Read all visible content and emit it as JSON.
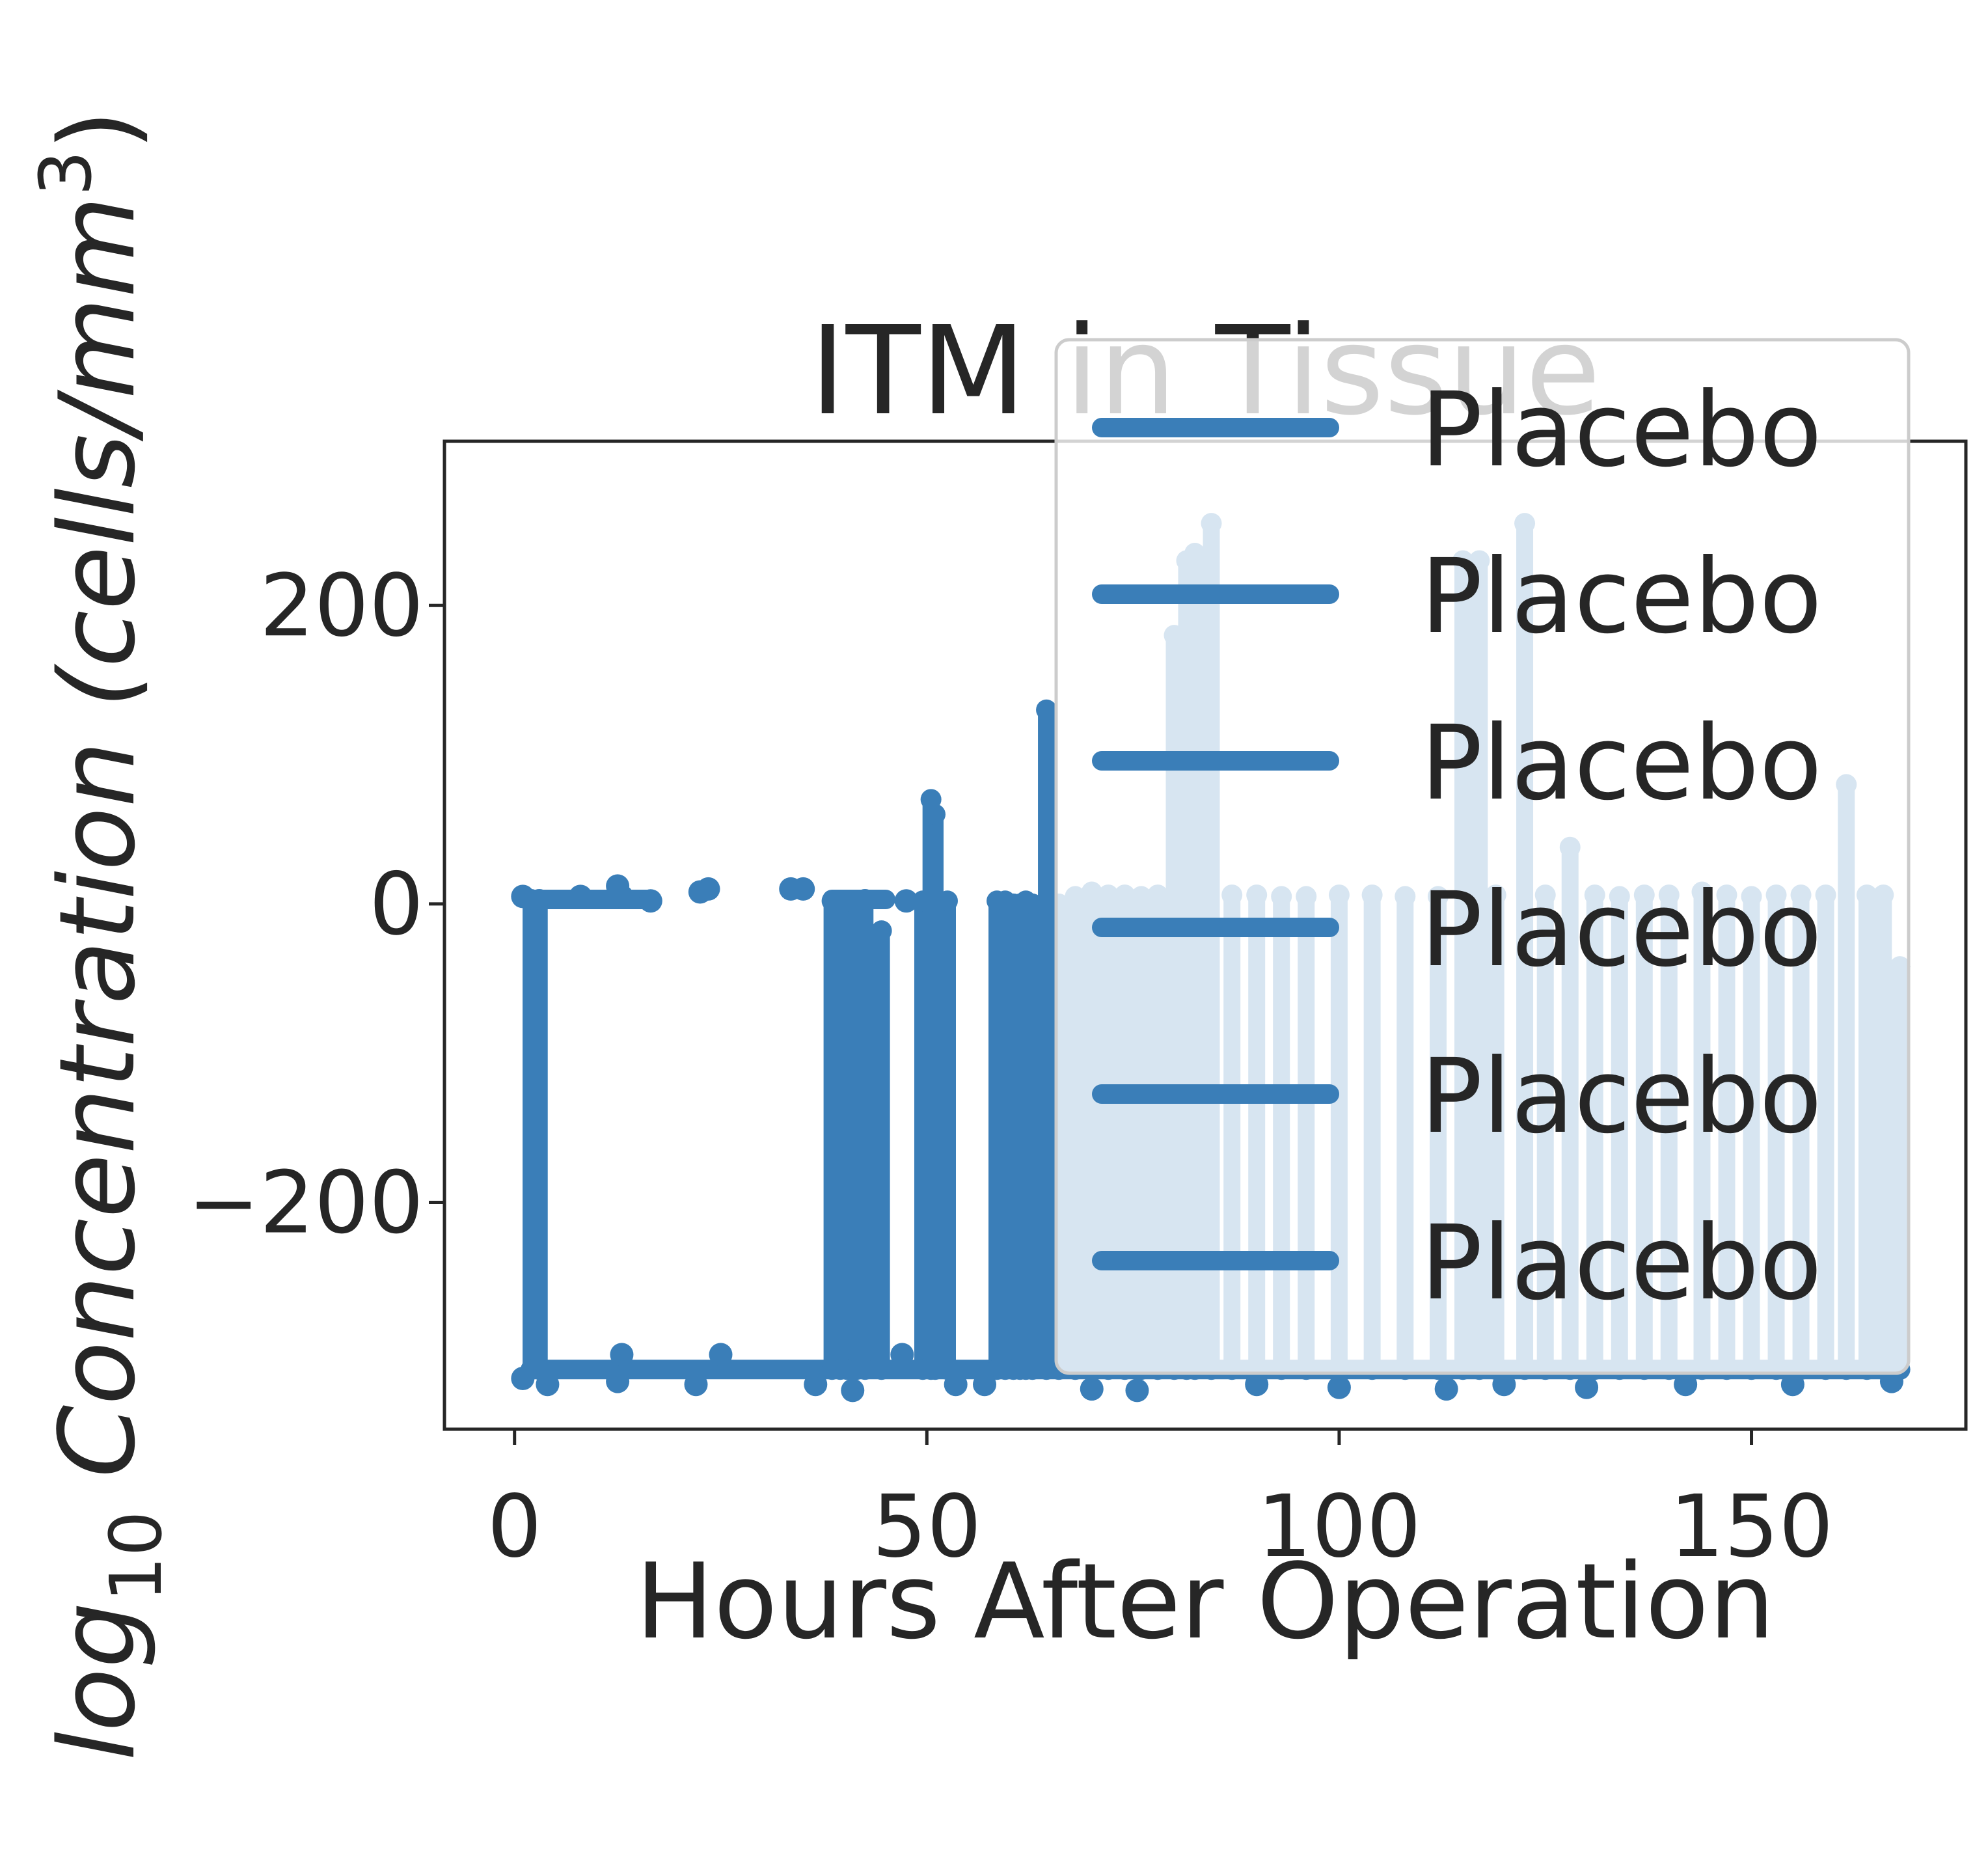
{
  "chart_data": {
    "type": "line",
    "title": "ITM  in Tissue",
    "xlabel": "Hours After Operation",
    "ylabel_prefix": "log",
    "ylabel_subscript": "10",
    "ylabel_main": " Concentration (cells/mm",
    "ylabel_superscript": "3",
    "ylabel_close": ")",
    "xlim": [
      -8.5,
      176
    ],
    "ylim": [
      -352,
      310
    ],
    "xticks": [
      0,
      50,
      100,
      150
    ],
    "xtick_labels": [
      "0",
      "50",
      "100",
      "150"
    ],
    "yticks": [
      -200,
      0,
      200
    ],
    "ytick_labels": [
      "−200",
      "0",
      "200"
    ],
    "grid": false,
    "legend_placement": "upper right",
    "legend_entries": [
      "Placebo",
      "Placebo",
      "Placebo",
      "Placebo",
      "Placebo",
      "Placebo"
    ],
    "colors": {
      "series": "#3a7eb8",
      "axis": "#262626",
      "legend_frame": "#cccccc"
    },
    "series": [
      {
        "baseline": -312,
        "upper_level": 3,
        "spikes": [
          {
            "x": 2,
            "top": 3
          },
          {
            "x": 3,
            "top": 3
          },
          {
            "x": 38.5,
            "top": 2
          },
          {
            "x": 39.5,
            "top": 2
          },
          {
            "x": 40.3,
            "top": 2
          },
          {
            "x": 41.5,
            "top": 2
          },
          {
            "x": 42.5,
            "top": 3
          },
          {
            "x": 44.5,
            "top": -18
          },
          {
            "x": 49.5,
            "top": 2
          },
          {
            "x": 50.5,
            "top": 70
          },
          {
            "x": 51,
            "top": 60
          },
          {
            "x": 52.5,
            "top": 2
          },
          {
            "x": 58.5,
            "top": 2
          },
          {
            "x": 59.5,
            "top": 2
          },
          {
            "x": 60.5,
            "top": 0
          },
          {
            "x": 61.3,
            "top": 0
          },
          {
            "x": 62,
            "top": 2
          },
          {
            "x": 62.8,
            "top": 0
          },
          {
            "x": 64.5,
            "top": 130
          },
          {
            "x": 66,
            "top": 0
          },
          {
            "x": 68,
            "top": 5
          },
          {
            "x": 70,
            "top": 8
          },
          {
            "x": 72,
            "top": 6
          },
          {
            "x": 74,
            "top": 6
          },
          {
            "x": 76,
            "top": 5
          },
          {
            "x": 78,
            "top": 6
          },
          {
            "x": 80,
            "top": 180
          },
          {
            "x": 81.5,
            "top": 230
          },
          {
            "x": 82.5,
            "top": 235
          },
          {
            "x": 84.5,
            "top": 255
          },
          {
            "x": 87,
            "top": 6
          },
          {
            "x": 90,
            "top": 6
          },
          {
            "x": 93,
            "top": 5
          },
          {
            "x": 96,
            "top": 5
          },
          {
            "x": 100,
            "top": 6
          },
          {
            "x": 104,
            "top": 6
          },
          {
            "x": 108,
            "top": 5
          },
          {
            "x": 112,
            "top": 5
          },
          {
            "x": 115,
            "top": 230
          },
          {
            "x": 117,
            "top": 230
          },
          {
            "x": 119,
            "top": 6
          },
          {
            "x": 122.5,
            "top": 255
          },
          {
            "x": 125,
            "top": 6
          },
          {
            "x": 128,
            "top": 38
          },
          {
            "x": 131,
            "top": 6
          },
          {
            "x": 134,
            "top": 5
          },
          {
            "x": 137,
            "top": 6
          },
          {
            "x": 140,
            "top": 6
          },
          {
            "x": 144,
            "top": 8
          },
          {
            "x": 147,
            "top": 6
          },
          {
            "x": 150,
            "top": 5
          },
          {
            "x": 153,
            "top": 6
          },
          {
            "x": 156,
            "top": 6
          },
          {
            "x": 159,
            "top": 6
          },
          {
            "x": 161.5,
            "top": 80
          },
          {
            "x": 164,
            "top": 6
          },
          {
            "x": 166,
            "top": 6
          },
          {
            "x": 168,
            "top": -42
          }
        ],
        "isolated_upper_points": [
          {
            "x": 1,
            "y": 5
          },
          {
            "x": 8,
            "y": 5
          },
          {
            "x": 12.5,
            "y": 12
          },
          {
            "x": 13,
            "y": 5
          },
          {
            "x": 16.5,
            "y": 2
          },
          {
            "x": 22.5,
            "y": 8
          },
          {
            "x": 23.5,
            "y": 10
          },
          {
            "x": 33.5,
            "y": 10
          },
          {
            "x": 35,
            "y": 10
          },
          {
            "x": 47.5,
            "y": 2
          }
        ],
        "isolated_baseline_points": [
          {
            "x": 1,
            "y": -318
          },
          {
            "x": 4,
            "y": -322
          },
          {
            "x": 12.5,
            "y": -320
          },
          {
            "x": 13,
            "y": -302
          },
          {
            "x": 22,
            "y": -322
          },
          {
            "x": 25,
            "y": -302
          },
          {
            "x": 36.5,
            "y": -322
          },
          {
            "x": 41,
            "y": -326
          },
          {
            "x": 47,
            "y": -302
          },
          {
            "x": 53.5,
            "y": -322
          },
          {
            "x": 57,
            "y": -322
          },
          {
            "x": 70,
            "y": -325
          },
          {
            "x": 75.5,
            "y": -326
          },
          {
            "x": 90,
            "y": -322
          },
          {
            "x": 100,
            "y": -324
          },
          {
            "x": 113,
            "y": -325
          },
          {
            "x": 120,
            "y": -322
          },
          {
            "x": 130,
            "y": -324
          },
          {
            "x": 142,
            "y": -322
          },
          {
            "x": 155,
            "y": -322
          },
          {
            "x": 167,
            "y": -320
          }
        ]
      }
    ]
  }
}
